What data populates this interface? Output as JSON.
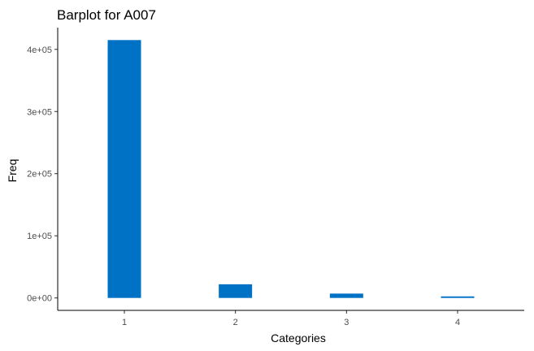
{
  "chart_data": {
    "type": "bar",
    "title": "Barplot for A007",
    "xlabel": "Categories",
    "ylabel": "Freq",
    "categories": [
      "1",
      "2",
      "3",
      "4"
    ],
    "values": [
      415000,
      22000,
      7000,
      2500
    ],
    "ylim": [
      -20000,
      435000
    ],
    "y_ticks": [
      0,
      100000,
      200000,
      300000,
      400000
    ],
    "y_tick_labels": [
      "0e+00",
      "1e+05",
      "2e+05",
      "3e+05",
      "4e+05"
    ],
    "bar_color": "#0072C6",
    "grid": false,
    "legend": "none"
  }
}
